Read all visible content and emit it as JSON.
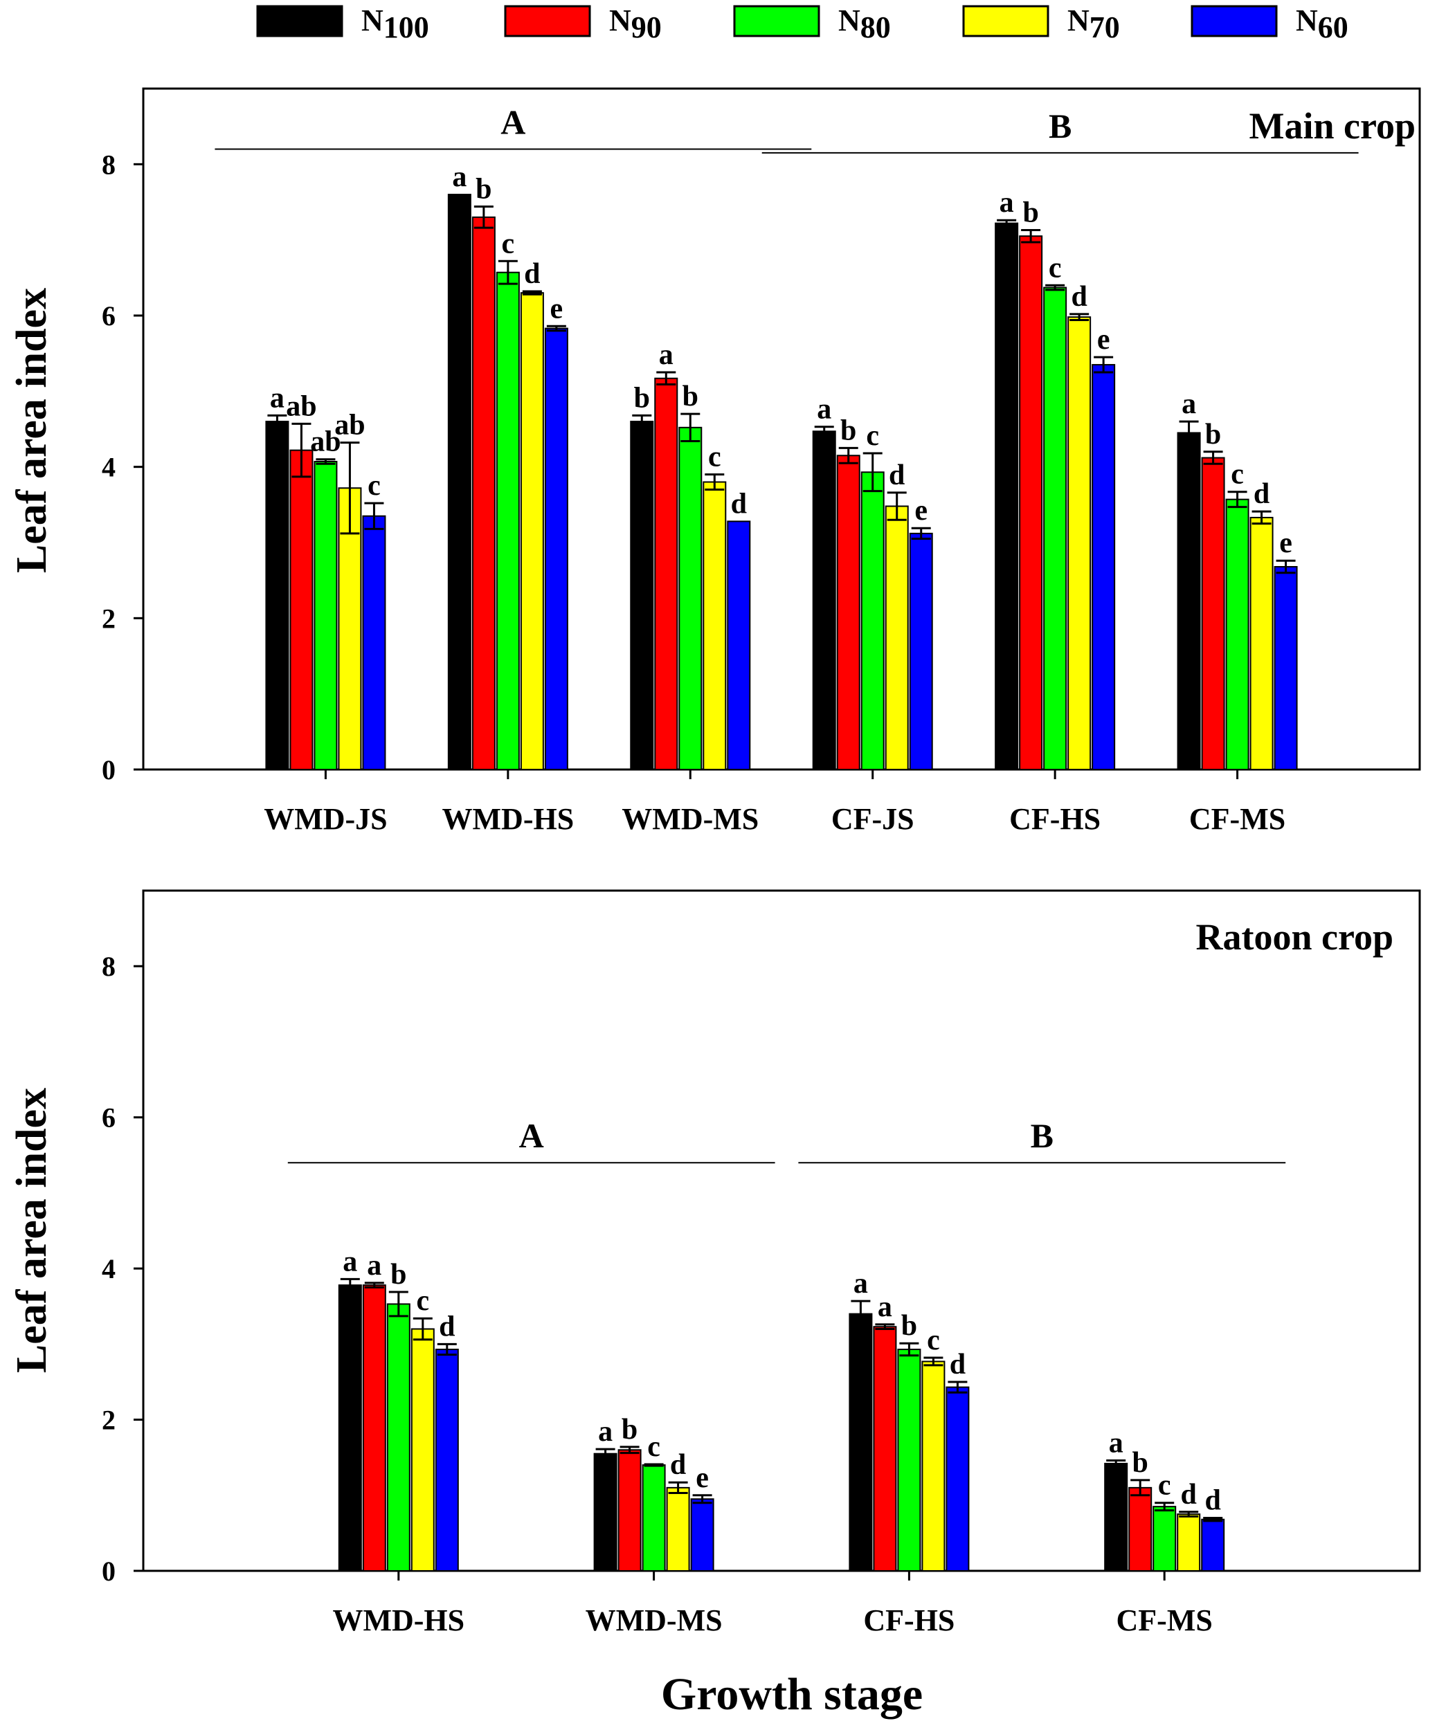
{
  "chart_data": [
    {
      "type": "bar",
      "panel_label": "Main crop",
      "ylabel": "Leaf area index",
      "xlabel": "",
      "ylim": [
        0,
        9
      ],
      "yticks": [
        0,
        2,
        4,
        6,
        8
      ],
      "categories": [
        "WMD-JS",
        "WMD-HS",
        "WMD-MS",
        "CF-JS",
        "CF-HS",
        "CF-MS"
      ],
      "series": [
        {
          "name": "N100",
          "values": [
            4.6,
            7.6,
            4.6,
            4.47,
            7.22,
            4.45
          ],
          "errors": [
            0.08,
            0.0,
            0.08,
            0.06,
            0.04,
            0.15
          ]
        },
        {
          "name": "N90",
          "values": [
            4.22,
            7.3,
            5.17,
            4.15,
            7.05,
            4.12
          ],
          "errors": [
            0.35,
            0.14,
            0.08,
            0.1,
            0.08,
            0.08
          ]
        },
        {
          "name": "N80",
          "values": [
            4.07,
            6.57,
            4.52,
            3.93,
            6.37,
            3.57
          ],
          "errors": [
            0.03,
            0.15,
            0.18,
            0.25,
            0.03,
            0.1
          ]
        },
        {
          "name": "N70",
          "values": [
            3.72,
            6.3,
            3.8,
            3.48,
            5.98,
            3.33
          ],
          "errors": [
            0.6,
            0.02,
            0.1,
            0.18,
            0.04,
            0.08
          ]
        },
        {
          "name": "N60",
          "values": [
            3.35,
            5.83,
            3.28,
            3.12,
            5.35,
            2.68
          ],
          "errors": [
            0.17,
            0.03,
            0.0,
            0.07,
            0.1,
            0.08
          ]
        }
      ],
      "letters": [
        [
          "a",
          "ab",
          "ab",
          "ab",
          "c"
        ],
        [
          "a",
          "b",
          "c",
          "d",
          "e"
        ],
        [
          "b",
          "a",
          "b",
          "c",
          "d"
        ],
        [
          "a",
          "b",
          "c",
          "d",
          "e"
        ],
        [
          "a",
          "b",
          "c",
          "d",
          "e"
        ],
        [
          "a",
          "b",
          "c",
          "d",
          "e"
        ]
      ],
      "groups": [
        {
          "label": "A",
          "from_category": 0,
          "to_category": 2,
          "y": 8.2
        },
        {
          "label": "B",
          "from_category": 3,
          "to_category": 5,
          "y": 8.15
        }
      ]
    },
    {
      "type": "bar",
      "panel_label": "Ratoon crop",
      "ylabel": "Leaf area index",
      "xlabel": "Growth stage",
      "ylim": [
        0,
        9
      ],
      "yticks": [
        0,
        2,
        4,
        6,
        8
      ],
      "categories": [
        "WMD-HS",
        "WMD-MS",
        "CF-HS",
        "CF-MS"
      ],
      "series": [
        {
          "name": "N100",
          "values": [
            3.78,
            1.55,
            3.4,
            1.42
          ],
          "errors": [
            0.08,
            0.06,
            0.17,
            0.04
          ]
        },
        {
          "name": "N90",
          "values": [
            3.78,
            1.6,
            3.23,
            1.1
          ],
          "errors": [
            0.03,
            0.04,
            0.03,
            0.1
          ]
        },
        {
          "name": "N80",
          "values": [
            3.53,
            1.4,
            2.93,
            0.85
          ],
          "errors": [
            0.16,
            0.01,
            0.08,
            0.05
          ]
        },
        {
          "name": "N70",
          "values": [
            3.2,
            1.1,
            2.77,
            0.75
          ],
          "errors": [
            0.14,
            0.07,
            0.05,
            0.03
          ]
        },
        {
          "name": "N60",
          "values": [
            2.93,
            0.95,
            2.43,
            0.68
          ],
          "errors": [
            0.07,
            0.05,
            0.07,
            0.02
          ]
        }
      ],
      "letters": [
        [
          "a",
          "a",
          "b",
          "c",
          "d"
        ],
        [
          "a",
          "b",
          "c",
          "d",
          "e"
        ],
        [
          "a",
          "a",
          "b",
          "c",
          "d"
        ],
        [
          "a",
          "b",
          "c",
          "d",
          "d"
        ]
      ],
      "groups": [
        {
          "label": "A",
          "from_category": 0,
          "to_category": 1,
          "y": 5.4
        },
        {
          "label": "B",
          "from_category": 2,
          "to_category": 3,
          "y": 5.4
        }
      ]
    }
  ],
  "legend": [
    {
      "main": "N",
      "sub": "100",
      "color": "#000000"
    },
    {
      "main": "N",
      "sub": "90",
      "color": "#ff0000"
    },
    {
      "main": "N",
      "sub": "80",
      "color": "#00ff00"
    },
    {
      "main": "N",
      "sub": "70",
      "color": "#ffff00"
    },
    {
      "main": "N",
      "sub": "60",
      "color": "#0000ff"
    }
  ]
}
